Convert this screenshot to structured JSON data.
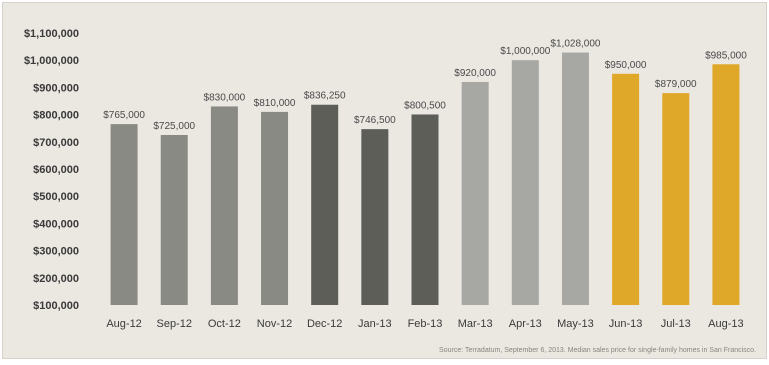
{
  "chart_data": {
    "type": "bar",
    "title": "",
    "xlabel": "",
    "ylabel": "",
    "ylim": [
      100000,
      1100000
    ],
    "ytick_values": [
      100000,
      200000,
      300000,
      400000,
      500000,
      600000,
      700000,
      800000,
      900000,
      1000000,
      1100000
    ],
    "ytick_labels": [
      "$100,000",
      "$200,000",
      "$300,000",
      "$400,000",
      "$500,000",
      "$600,000",
      "$700,000",
      "$800,000",
      "$900,000",
      "$1,000,000",
      "$1,100,000"
    ],
    "categories": [
      "Aug-12",
      "Sep-12",
      "Oct-12",
      "Nov-12",
      "Dec-12",
      "Jan-13",
      "Feb-13",
      "Mar-13",
      "Apr-13",
      "May-13",
      "Jun-13",
      "Jul-13",
      "Aug-13"
    ],
    "values": [
      765000,
      725000,
      830000,
      810000,
      836250,
      746500,
      800500,
      920000,
      1000000,
      1028000,
      950000,
      879000,
      985000
    ],
    "value_labels": [
      "$765,000",
      "$725,000",
      "$830,000",
      "$810,000",
      "$836,250",
      "$746,500",
      "$800,500",
      "$920,000",
      "$1,000,000",
      "$1,028,000",
      "$950,000",
      "$879,000",
      "$985,000"
    ],
    "bar_colors": [
      "#8a8a85",
      "#8a8a85",
      "#8a8a85",
      "#8a8a85",
      "#5d5e58",
      "#5d5e58",
      "#5d5e58",
      "#a7a7a4",
      "#a7a7a4",
      "#a7a7a4",
      "#e0a828",
      "#e0a828",
      "#e0a828"
    ],
    "grid": false,
    "legend": "none"
  },
  "source_note": "Source: Terradatum, September 6, 2013. Median sales price for single-family homes in San Francisco."
}
